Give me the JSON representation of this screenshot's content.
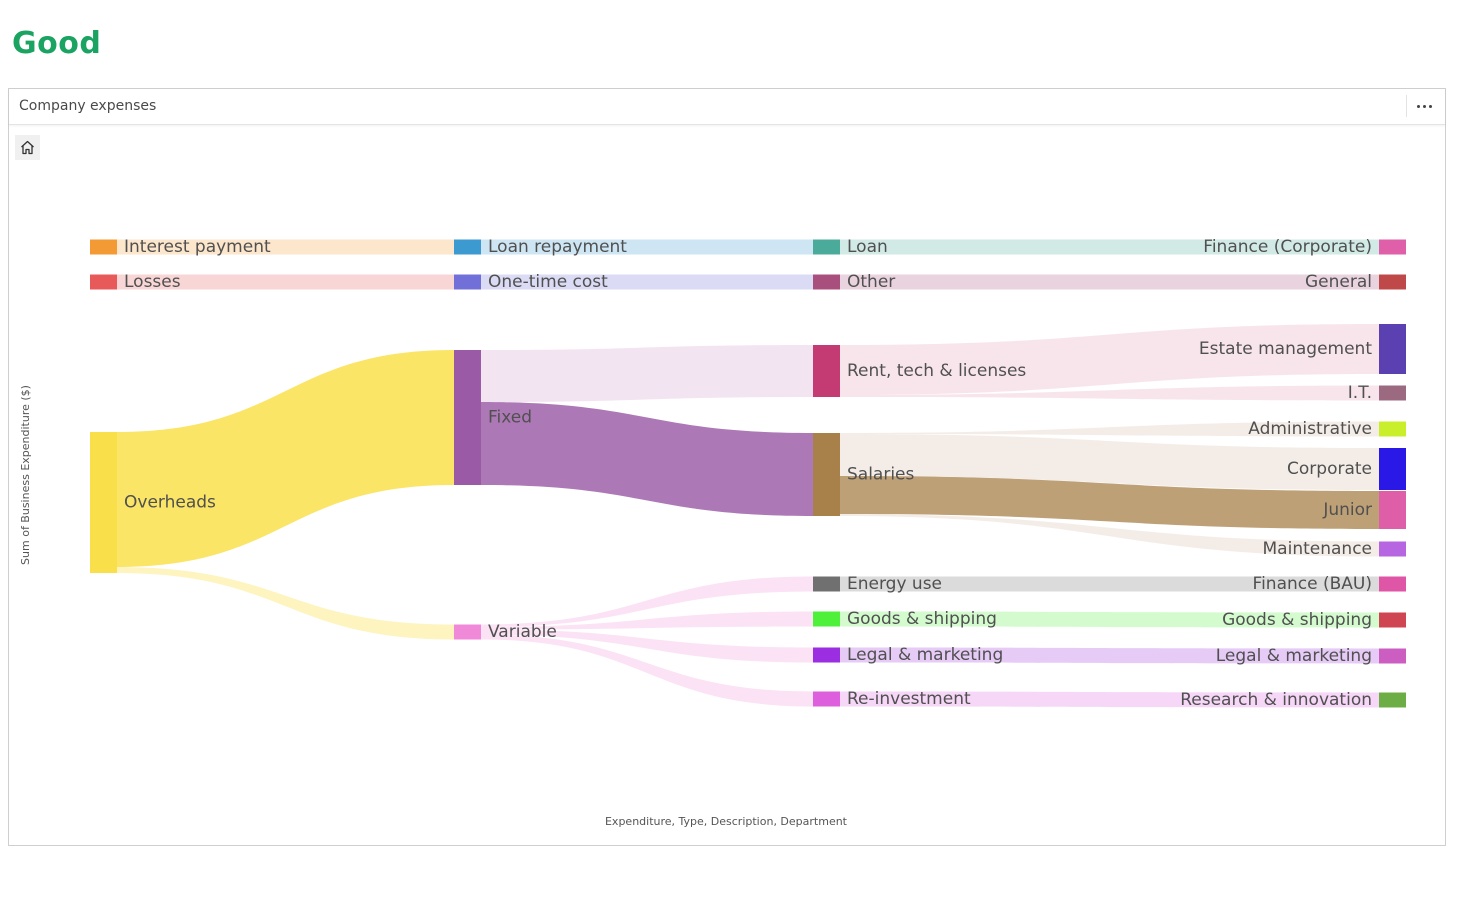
{
  "badge": {
    "text": "Good",
    "color": "#1aa361"
  },
  "card": {
    "title": "Company expenses"
  },
  "icons": {
    "home": "home-icon",
    "more": "more-horizontal-icon"
  },
  "chart_data": {
    "type": "sankey",
    "title": "",
    "xlabel": "Expenditure, Type, Description, Department",
    "ylabel": "Sum of Business Expenditure ($)",
    "levels": [
      "Expenditure",
      "Type",
      "Description",
      "Department"
    ],
    "nodes": [
      {
        "id": "interest",
        "label": "Interest payment",
        "level": 0,
        "color": "#f39a35"
      },
      {
        "id": "losses",
        "label": "Losses",
        "level": 0,
        "color": "#e85a5a"
      },
      {
        "id": "overheads",
        "label": "Overheads",
        "level": 0,
        "color": "#f9e04b"
      },
      {
        "id": "loanrep",
        "label": "Loan repayment",
        "level": 1,
        "color": "#3d9ad0"
      },
      {
        "id": "onetime",
        "label": "One-time cost",
        "level": 1,
        "color": "#7070d8"
      },
      {
        "id": "fixed",
        "label": "Fixed",
        "level": 1,
        "color": "#9b5aa6"
      },
      {
        "id": "variable",
        "label": "Variable",
        "level": 1,
        "color": "#f08ad8"
      },
      {
        "id": "loan",
        "label": "Loan",
        "level": 2,
        "color": "#4bab9a"
      },
      {
        "id": "other",
        "label": "Other",
        "level": 2,
        "color": "#a84f7d"
      },
      {
        "id": "rent",
        "label": "Rent, tech & licenses",
        "level": 2,
        "color": "#c43a72"
      },
      {
        "id": "salaries",
        "label": "Salaries",
        "level": 2,
        "color": "#a8804a"
      },
      {
        "id": "energy",
        "label": "Energy use",
        "level": 2,
        "color": "#707070"
      },
      {
        "id": "goods2",
        "label": "Goods & shipping",
        "level": 2,
        "color": "#4ef03a"
      },
      {
        "id": "legal2",
        "label": "Legal & marketing",
        "level": 2,
        "color": "#9a2ee0"
      },
      {
        "id": "reinv",
        "label": "Re-investment",
        "level": 2,
        "color": "#dd5fde"
      },
      {
        "id": "fincorp",
        "label": "Finance (Corporate)",
        "level": 3,
        "color": "#df5fa8"
      },
      {
        "id": "general",
        "label": "General",
        "level": 3,
        "color": "#bf4848"
      },
      {
        "id": "estate",
        "label": "Estate management",
        "level": 3,
        "color": "#5a40b0"
      },
      {
        "id": "it",
        "label": "I.T.",
        "level": 3,
        "color": "#9c6a80"
      },
      {
        "id": "admin",
        "label": "Administrative",
        "level": 3,
        "color": "#c8ef2a"
      },
      {
        "id": "corporate",
        "label": "Corporate",
        "level": 3,
        "color": "#2a18e6"
      },
      {
        "id": "junior",
        "label": "Junior",
        "level": 3,
        "color": "#de5ea8"
      },
      {
        "id": "maint",
        "label": "Maintenance",
        "level": 3,
        "color": "#b766e2"
      },
      {
        "id": "finbau",
        "label": "Finance (BAU)",
        "level": 3,
        "color": "#e056a6"
      },
      {
        "id": "goods3",
        "label": "Goods & shipping",
        "level": 3,
        "color": "#cf4551"
      },
      {
        "id": "legal3",
        "label": "Legal & marketing",
        "level": 3,
        "color": "#cb5ec0"
      },
      {
        "id": "research",
        "label": "Research & innovation",
        "level": 3,
        "color": "#6cad45"
      }
    ],
    "links": [
      {
        "source": "interest",
        "target": "loanrep",
        "value": 0.4
      },
      {
        "source": "losses",
        "target": "onetime",
        "value": 0.4
      },
      {
        "source": "overheads",
        "target": "fixed",
        "value": 135
      },
      {
        "source": "overheads",
        "target": "variable",
        "value": 6
      },
      {
        "source": "loanrep",
        "target": "loan",
        "value": 0.4
      },
      {
        "source": "onetime",
        "target": "other",
        "value": 0.4
      },
      {
        "source": "fixed",
        "target": "rent",
        "value": 52
      },
      {
        "source": "fixed",
        "target": "salaries",
        "value": 83
      },
      {
        "source": "variable",
        "target": "energy",
        "value": 1
      },
      {
        "source": "variable",
        "target": "goods2",
        "value": 1
      },
      {
        "source": "variable",
        "target": "legal2",
        "value": 2
      },
      {
        "source": "variable",
        "target": "reinv",
        "value": 2
      },
      {
        "source": "loan",
        "target": "fincorp",
        "value": 0.4
      },
      {
        "source": "other",
        "target": "general",
        "value": 0.4
      },
      {
        "source": "rent",
        "target": "estate",
        "value": 50
      },
      {
        "source": "rent",
        "target": "it",
        "value": 2
      },
      {
        "source": "salaries",
        "target": "admin",
        "value": 1
      },
      {
        "source": "salaries",
        "target": "corporate",
        "value": 42
      },
      {
        "source": "salaries",
        "target": "junior",
        "value": 38
      },
      {
        "source": "salaries",
        "target": "maint",
        "value": 2
      },
      {
        "source": "energy",
        "target": "finbau",
        "value": 1
      },
      {
        "source": "goods2",
        "target": "goods3",
        "value": 1
      },
      {
        "source": "legal2",
        "target": "legal3",
        "value": 2
      },
      {
        "source": "reinv",
        "target": "research",
        "value": 2
      }
    ]
  }
}
